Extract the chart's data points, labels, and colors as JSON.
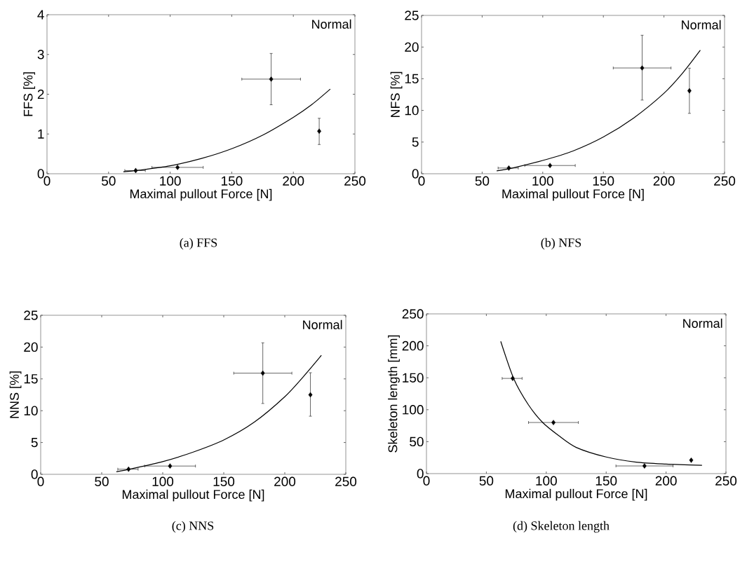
{
  "chart_data": [
    {
      "type": "scatter",
      "xlabel": "Maximal pullout Force [N]",
      "ylabel": "FFS [%]",
      "annotations": [
        "Normal",
        "(a) FFS"
      ],
      "xlim": [
        0,
        250
      ],
      "ylim": [
        0,
        4
      ],
      "xticks": [
        0,
        50,
        100,
        150,
        200,
        250
      ],
      "yticks": [
        0,
        1,
        2,
        3,
        4
      ],
      "series": [
        {
          "marker": "diamond",
          "color": "#000000",
          "x": [
            72,
            106,
            182,
            221
          ],
          "values": [
            0.08,
            0.16,
            2.38,
            1.07
          ],
          "xerrors": [
            [
              63,
              80
            ],
            [
              85,
              127
            ],
            [
              158,
              206
            ],
            null
          ],
          "errors": [
            null,
            null,
            [
              1.73,
              3.03
            ],
            [
              0.73,
              1.4
            ]
          ]
        },
        {
          "type": "line",
          "color": "#000000",
          "x": [
            62,
            75,
            100,
            125,
            150,
            175,
            200,
            215,
            230
          ],
          "values": [
            0.05,
            0.09,
            0.2,
            0.38,
            0.63,
            0.97,
            1.42,
            1.74,
            2.13
          ]
        }
      ]
    },
    {
      "type": "scatter",
      "xlabel": "Maximal pullout Force [N]",
      "ylabel": "NFS [%]",
      "annotations": [
        "Normal",
        "(b) NFS"
      ],
      "xlim": [
        0,
        250
      ],
      "ylim": [
        0,
        25
      ],
      "xticks": [
        0,
        50,
        100,
        150,
        200,
        250
      ],
      "yticks": [
        0,
        5,
        10,
        15,
        20,
        25
      ],
      "series": [
        {
          "marker": "diamond",
          "color": "#000000",
          "x": [
            72,
            106,
            182,
            221
          ],
          "values": [
            0.9,
            1.3,
            16.7,
            13.1
          ],
          "xerrors": [
            [
              63,
              80
            ],
            [
              85,
              127
            ],
            [
              158,
              206
            ],
            null
          ],
          "errors": [
            null,
            null,
            [
              11.6,
              21.9
            ],
            [
              9.5,
              16.7
            ]
          ]
        },
        {
          "type": "line",
          "color": "#000000",
          "x": [
            62,
            75,
            100,
            125,
            150,
            175,
            200,
            215,
            230
          ],
          "values": [
            0.45,
            0.9,
            2.1,
            3.6,
            5.8,
            8.8,
            12.7,
            15.8,
            19.5
          ]
        }
      ]
    },
    {
      "type": "scatter",
      "xlabel": "Maximal pullout Force [N]",
      "ylabel": "NNS [%]",
      "annotations": [
        "Normal",
        "(c) NNS"
      ],
      "xlim": [
        0,
        250
      ],
      "ylim": [
        0,
        25
      ],
      "xticks": [
        0,
        50,
        100,
        150,
        200,
        250
      ],
      "yticks": [
        0,
        5,
        10,
        15,
        20,
        25
      ],
      "series": [
        {
          "marker": "diamond",
          "color": "#000000",
          "x": [
            72,
            106,
            182,
            221
          ],
          "values": [
            0.8,
            1.3,
            15.9,
            12.5
          ],
          "xerrors": [
            [
              63,
              80
            ],
            [
              85,
              127
            ],
            [
              158,
              206
            ],
            null
          ],
          "errors": [
            null,
            null,
            [
              11.1,
              20.7
            ],
            [
              9.1,
              16.0
            ]
          ]
        },
        {
          "type": "line",
          "color": "#000000",
          "x": [
            62,
            75,
            100,
            125,
            150,
            175,
            200,
            215,
            230
          ],
          "values": [
            0.4,
            0.9,
            2.0,
            3.5,
            5.4,
            8.2,
            12.2,
            15.3,
            18.7
          ]
        }
      ]
    },
    {
      "type": "scatter",
      "xlabel": "Maximal pullout Force [N]",
      "ylabel": "Skeleton length [mm]",
      "annotations": [
        "Normal",
        "(d) Skeleton length"
      ],
      "xlim": [
        0,
        250
      ],
      "ylim": [
        0,
        250
      ],
      "xticks": [
        0,
        50,
        100,
        150,
        200,
        250
      ],
      "yticks": [
        0,
        50,
        100,
        150,
        200,
        250
      ],
      "series": [
        {
          "marker": "diamond",
          "color": "#000000",
          "x": [
            72,
            106,
            182,
            221
          ],
          "values": [
            149,
            80,
            12,
            21
          ],
          "xerrors": [
            [
              63,
              80
            ],
            [
              85,
              127
            ],
            [
              158,
              206
            ],
            null
          ]
        },
        {
          "type": "line",
          "color": "#000000",
          "x": [
            62,
            73,
            85,
            97,
            110,
            125,
            150,
            175,
            200,
            230
          ],
          "values": [
            207,
            148,
            108,
            80,
            60,
            41,
            26,
            18,
            15,
            13
          ]
        }
      ]
    }
  ]
}
